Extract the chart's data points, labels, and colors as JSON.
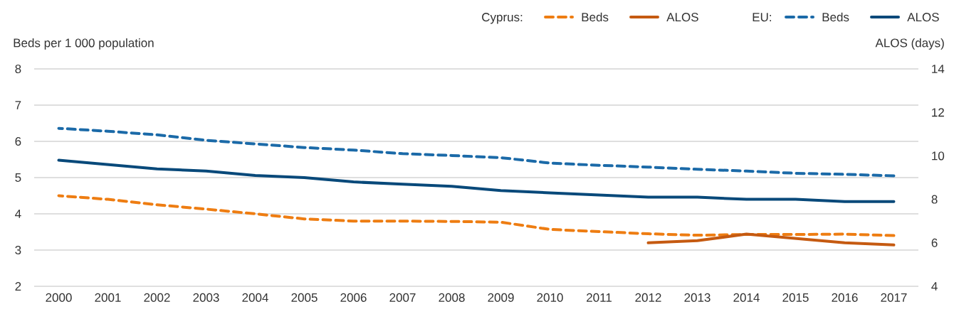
{
  "chart_data": {
    "type": "line",
    "xlabel": null,
    "ylabel": "Beds per 1 000 population",
    "y2label": "ALOS (days)",
    "categories": [
      "2000",
      "2001",
      "2002",
      "2003",
      "2004",
      "2005",
      "2006",
      "2007",
      "2008",
      "2009",
      "2010",
      "2011",
      "2012",
      "2013",
      "2014",
      "2015",
      "2016",
      "2017"
    ],
    "ylim": [
      2,
      8
    ],
    "yticks": [
      2,
      3,
      4,
      5,
      6,
      7,
      8
    ],
    "y2lim": [
      4,
      14
    ],
    "y2ticks": [
      4,
      6,
      8,
      10,
      12,
      14
    ],
    "grid": "y",
    "legend": "top right",
    "annotations": [
      "Cyprus:",
      "EU:"
    ],
    "series": [
      {
        "name": "Beds",
        "color": "#ee7d12",
        "line_style": "dashed",
        "axis": "y",
        "values": [
          4.5,
          4.4,
          4.25,
          4.13,
          4.0,
          3.86,
          3.8,
          3.8,
          3.79,
          3.77,
          3.57,
          3.51,
          3.45,
          3.41,
          3.43,
          3.43,
          3.44,
          3.4
        ]
      },
      {
        "name": "ALOS",
        "color": "#c55a11",
        "line_style": "solid",
        "axis": "y2",
        "values": [
          null,
          null,
          null,
          null,
          null,
          null,
          null,
          null,
          null,
          null,
          null,
          null,
          6.0,
          6.1,
          6.4,
          6.2,
          6.0,
          5.9
        ]
      },
      {
        "name": "Beds",
        "color": "#1b6aa8",
        "line_style": "dashed",
        "axis": "y",
        "values": [
          6.36,
          6.28,
          6.18,
          6.03,
          5.93,
          5.83,
          5.76,
          5.66,
          5.61,
          5.55,
          5.4,
          5.34,
          5.29,
          5.23,
          5.18,
          5.12,
          5.09,
          5.05
        ]
      },
      {
        "name": "ALOS",
        "color": "#08497a",
        "line_style": "solid",
        "axis": "y2",
        "values": [
          9.8,
          9.6,
          9.4,
          9.3,
          9.1,
          9.0,
          8.8,
          8.7,
          8.6,
          8.4,
          8.3,
          8.2,
          8.1,
          8.1,
          8.0,
          8.0,
          7.9,
          7.9
        ]
      }
    ]
  }
}
